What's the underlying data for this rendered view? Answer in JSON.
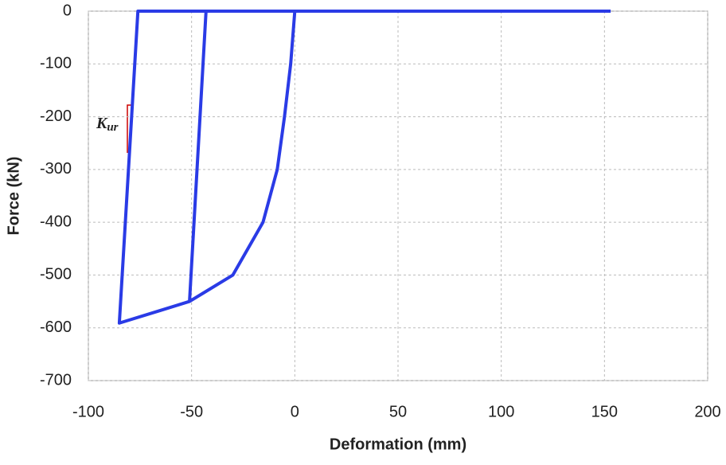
{
  "chart_data": {
    "type": "line",
    "x_label": "Deformation (mm)",
    "y_label": "Force (kN)",
    "x": [
      153,
      -76,
      -85,
      -65,
      -51,
      -43,
      -51,
      -30,
      -15.4,
      -8.5,
      -5,
      -2,
      0
    ],
    "values": [
      0,
      0,
      -591,
      -567,
      -550,
      0,
      -550,
      -500,
      -400,
      -300,
      -200,
      -100,
      0
    ],
    "color": "#2a3be6",
    "xlim": [
      -100,
      200
    ],
    "xticks": [
      -100,
      -50,
      0,
      50,
      100,
      150,
      200
    ],
    "ylim": [
      -700,
      0
    ],
    "yticks": [
      -700,
      -600,
      -500,
      -400,
      -300,
      -200,
      -100,
      0
    ],
    "grid": true,
    "annotations": [
      {
        "text": "K",
        "subscript": "ur"
      }
    ]
  }
}
